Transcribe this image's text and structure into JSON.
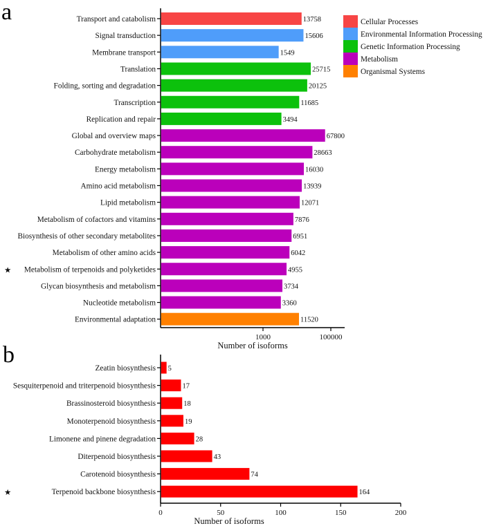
{
  "chart_data": [
    {
      "panel": "a",
      "type": "bar",
      "orientation": "horizontal",
      "xscale": "log",
      "xlim": [
        1,
        250000
      ],
      "xticks": [
        1000,
        100000
      ],
      "xtick_labels": [
        "1000",
        "100000"
      ],
      "xlabel": "Number of isoforms",
      "legend_position": "top-right",
      "legend": [
        {
          "name": "Cellular Processes",
          "color": "#f74545"
        },
        {
          "name": "Environmental Information Processing",
          "color": "#4f9dfa"
        },
        {
          "name": "Genetic Information Processing",
          "color": "#0cc10c"
        },
        {
          "name": "Metabolism",
          "color": "#bb00bb"
        },
        {
          "name": "Organismal Systems",
          "color": "#ff8000"
        }
      ],
      "categories": [
        {
          "label": "Transport and catabolism",
          "value": 13758,
          "group": 0
        },
        {
          "label": "Signal transduction",
          "value": 15606,
          "group": 1
        },
        {
          "label": "Membrane transport",
          "value": 1549,
          "group": 1,
          "bar_extent": 2900
        },
        {
          "label": "Translation",
          "value": 25715,
          "group": 2
        },
        {
          "label": "Folding, sorting and degradation",
          "value": 20125,
          "group": 2
        },
        {
          "label": "Transcription",
          "value": 11685,
          "group": 2
        },
        {
          "label": "Replication and repair",
          "value": 3494,
          "group": 2
        },
        {
          "label": "Global and overview maps",
          "value": 67800,
          "group": 3
        },
        {
          "label": "Carbohydrate metabolism",
          "value": 28663,
          "group": 3
        },
        {
          "label": "Energy metabolism",
          "value": 16030,
          "group": 3
        },
        {
          "label": "Amino acid metabolism",
          "value": 13939,
          "group": 3
        },
        {
          "label": "Lipid metabolism",
          "value": 12071,
          "group": 3
        },
        {
          "label": "Metabolism of cofactors and vitamins",
          "value": 7876,
          "group": 3
        },
        {
          "label": "Biosynthesis of other secondary metabolites",
          "value": 6951,
          "group": 3
        },
        {
          "label": "Metabolism of other amino acids",
          "value": 6042,
          "group": 3
        },
        {
          "label": "Metabolism of terpenoids and polyketides",
          "value": 4955,
          "group": 3,
          "starred": true
        },
        {
          "label": "Glycan biosynthesis and metabolism",
          "value": 3734,
          "group": 3
        },
        {
          "label": "Nucleotide metabolism",
          "value": 3360,
          "group": 3
        },
        {
          "label": "Environmental adaptation",
          "value": 11520,
          "group": 4
        }
      ]
    },
    {
      "panel": "b",
      "type": "bar",
      "orientation": "horizontal",
      "xscale": "linear",
      "xlim": [
        0,
        200
      ],
      "xticks": [
        0,
        50,
        100,
        150,
        200
      ],
      "xtick_labels": [
        "0",
        "50",
        "100",
        "150",
        "200"
      ],
      "xlabel": "Number of isoforms",
      "color": "#ff0000",
      "categories": [
        {
          "label": "Zeatin biosynthesis",
          "value": 5
        },
        {
          "label": "Sesquiterpenoid and triterpenoid biosynthesis",
          "value": 17
        },
        {
          "label": "Brassinosteroid biosynthesis",
          "value": 18
        },
        {
          "label": "Monoterpenoid biosynthesis",
          "value": 19
        },
        {
          "label": "Limonene and pinene degradation",
          "value": 28
        },
        {
          "label": "Diterpenoid biosynthesis",
          "value": 43
        },
        {
          "label": "Carotenoid biosynthesis",
          "value": 74
        },
        {
          "label": "Terpenoid backbone biosynthesis",
          "value": 164,
          "starred": true
        }
      ]
    }
  ],
  "star_symbol": "★"
}
